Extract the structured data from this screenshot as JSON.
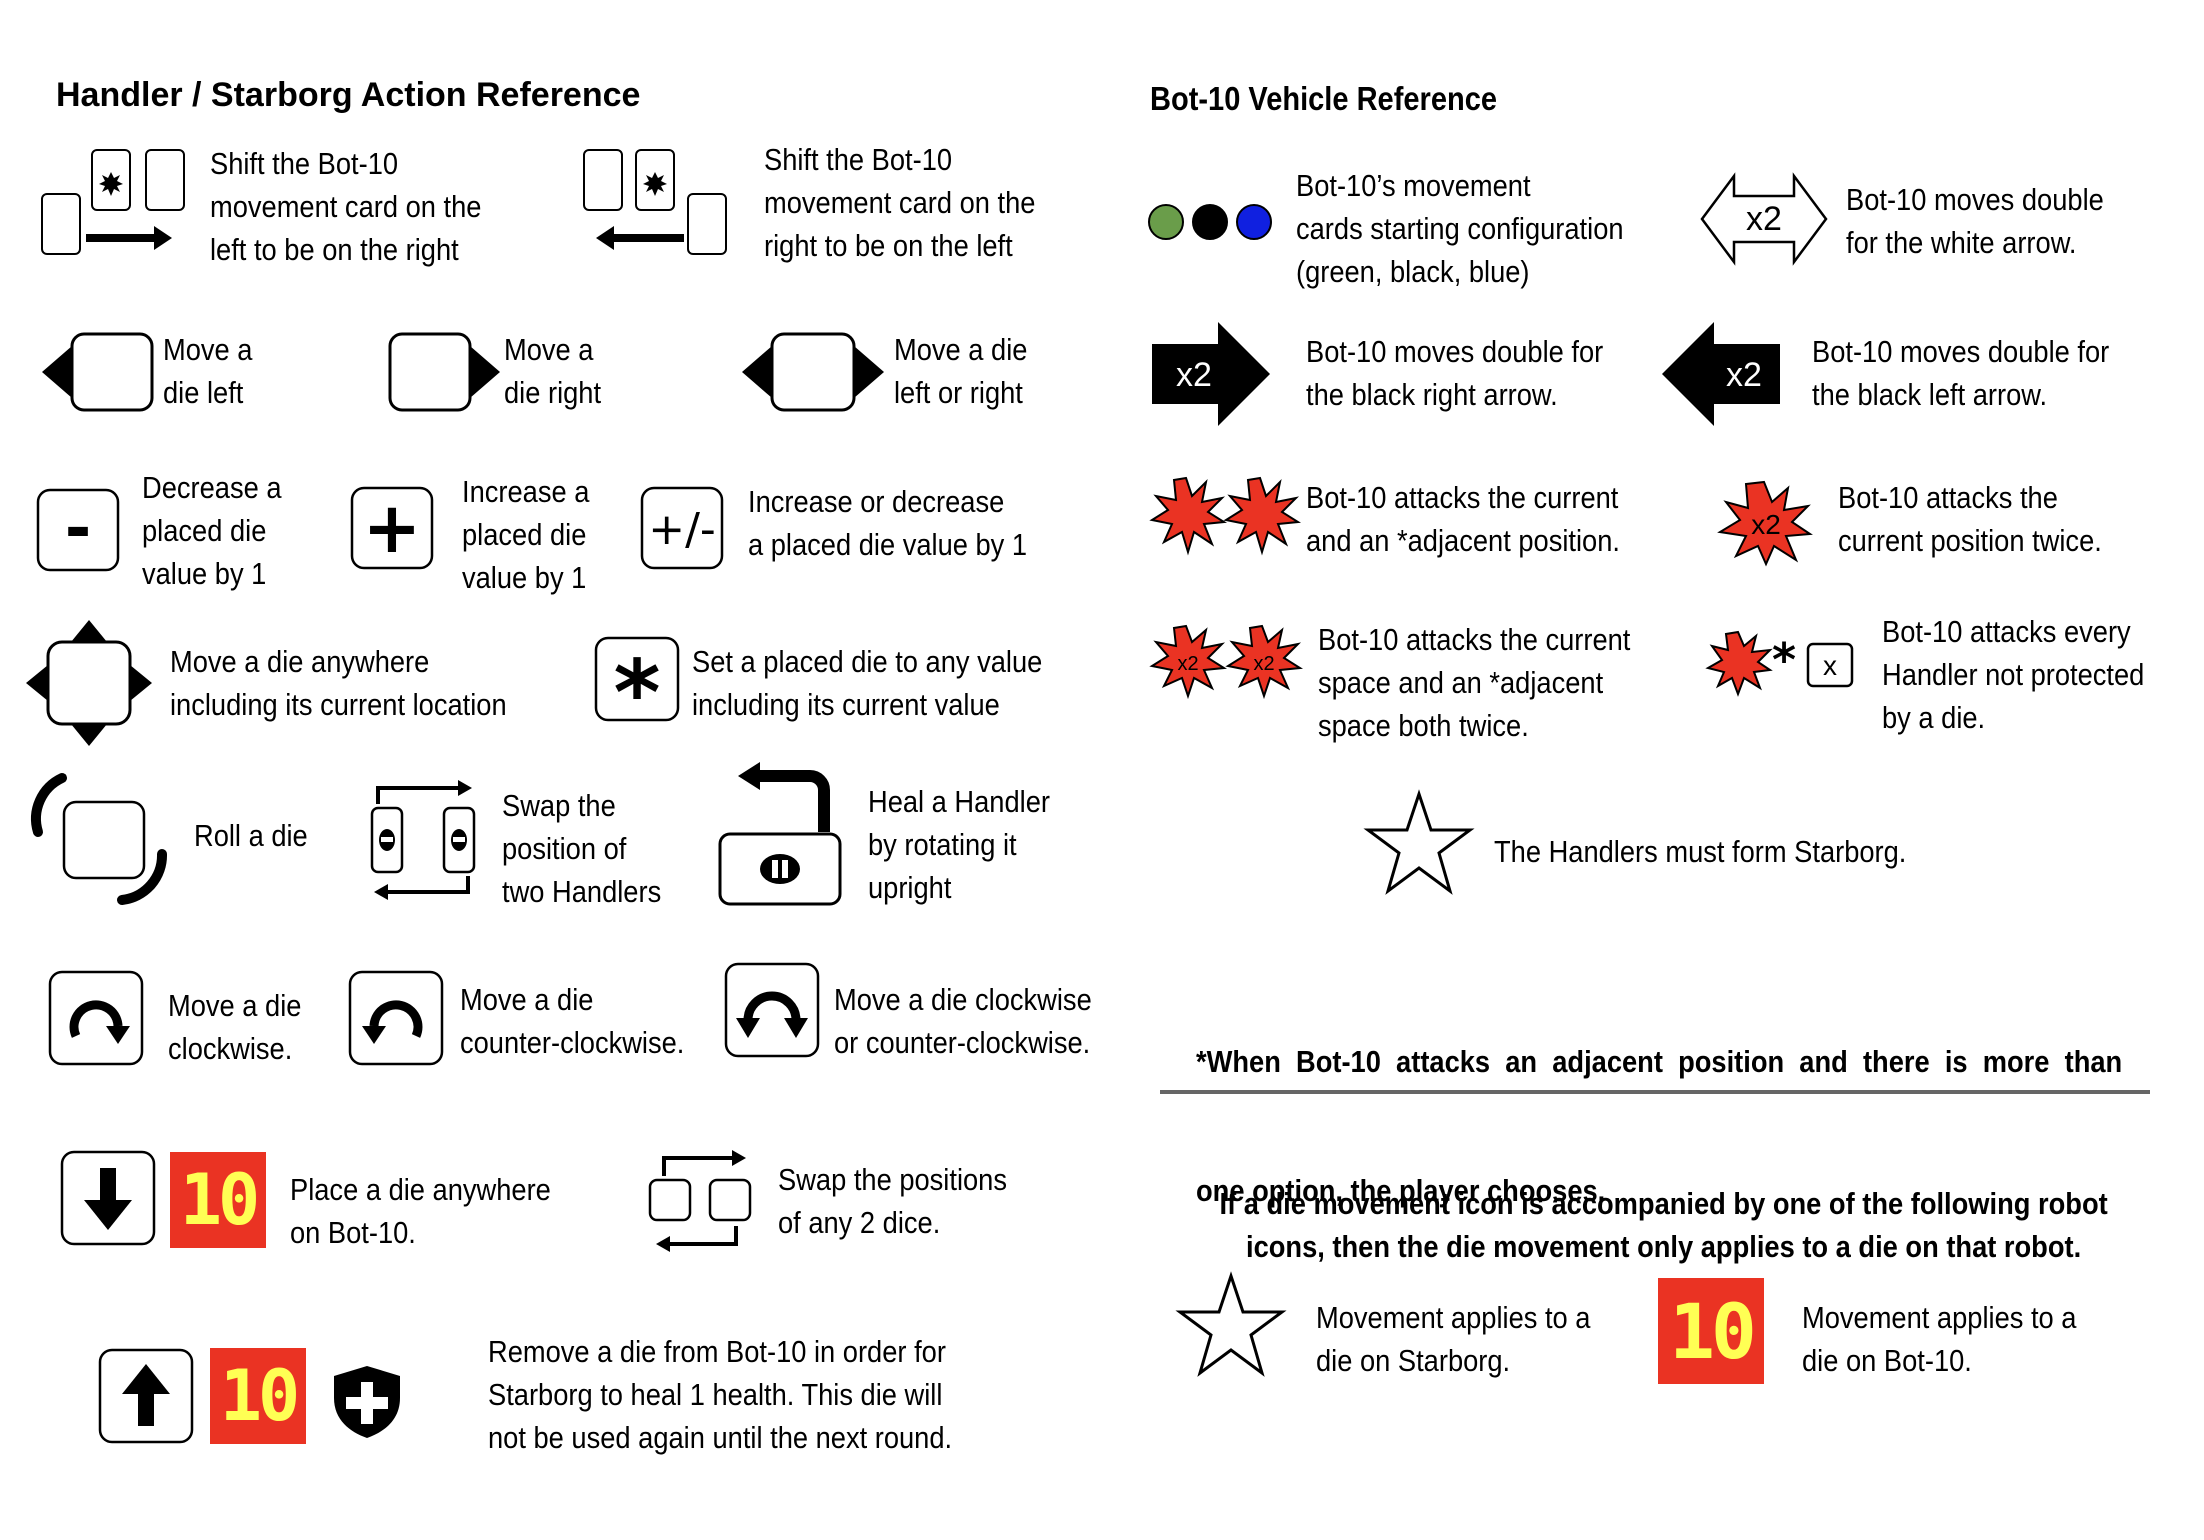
{
  "left_section": {
    "title": "Handler / Starborg Action Reference",
    "shift_left_to_right": [
      "Shift the Bot-10",
      "movement card on the",
      "left to be on the right"
    ],
    "shift_right_to_left": [
      "Shift the Bot-10",
      "movement card on the",
      "right to be on the left"
    ],
    "move_die_left": [
      "Move a",
      "die left"
    ],
    "move_die_right": [
      "Move a",
      "die right"
    ],
    "move_die_left_or_right": [
      "Move a die",
      "left or right"
    ],
    "decrease_die": {
      "symbol": "-",
      "lines": [
        "Decrease a",
        "placed die",
        "value by 1"
      ]
    },
    "increase_die": {
      "symbol": "+",
      "lines": [
        "Increase a",
        "placed die",
        "value by 1"
      ]
    },
    "increase_or_decrease": {
      "symbol": "+/-",
      "lines": [
        "Increase or decrease",
        "a placed  die value by 1"
      ]
    },
    "move_anywhere": [
      "Move a die anywhere",
      "including its current location"
    ],
    "set_any_value": {
      "symbol": "*",
      "lines": [
        "Set a placed die to any value",
        "including its current value"
      ]
    },
    "roll_die": "Roll a die",
    "swap_handlers": [
      "Swap the",
      "position of",
      "two Handlers"
    ],
    "heal_handler": [
      "Heal a Handler",
      "by rotating it",
      "upright"
    ],
    "move_clockwise": [
      "Move a die",
      "clockwise."
    ],
    "move_counter_clockwise": [
      "Move a die",
      "counter-clockwise."
    ],
    "move_either": [
      "Move a die clockwise",
      "or counter-clockwise."
    ],
    "place_on_bot10": {
      "badge": "10",
      "lines": [
        "Place a die anywhere",
        "on Bot-10."
      ]
    },
    "swap_dice": [
      "Swap the positions",
      "of any 2 dice."
    ],
    "remove_from_bot10": {
      "badge": "10",
      "lines": [
        "Remove a die from Bot-10 in order for",
        "Starborg to heal 1 health.  This die will",
        "not be used again until the next round."
      ]
    }
  },
  "right_section": {
    "title": "Bot-10 Vehicle Reference",
    "starting_config": {
      "dot_colors": [
        "#6a9d4a",
        "#000000",
        "#1020e0"
      ],
      "lines": [
        "Bot-10’s movement",
        "cards starting configuration",
        "(green, black, blue)"
      ]
    },
    "white_arrow": {
      "label": "x2",
      "lines": [
        "Bot-10 moves double",
        "for the white arrow."
      ]
    },
    "black_right_arrow": {
      "label": "x2",
      "lines": [
        "Bot-10 moves double for",
        "the black right arrow."
      ]
    },
    "black_left_arrow": {
      "label": "x2",
      "lines": [
        "Bot-10 moves double for",
        "the black left arrow."
      ]
    },
    "attack_current_adjacent": [
      "Bot-10 attacks the current",
      "and an *adjacent position."
    ],
    "attack_twice": {
      "label": "x2",
      "lines": [
        "Bot-10 attacks the",
        "current position twice."
      ]
    },
    "attack_both_twice": {
      "label": "x2",
      "lines": [
        "Bot-10 attacks the current",
        "space and an *adjacent",
        "space both twice."
      ]
    },
    "attack_every": {
      "star": "*",
      "box": "x",
      "lines": [
        "Bot-10 attacks every",
        "Handler not protected",
        "by a die."
      ]
    },
    "starborg": "The Handlers must form Starborg.",
    "adjacent_note": [
      "*When  Bot-10  attacks  an  adjacent  position  and  there  is  more  than",
      "one option, the player chooses."
    ],
    "robot_note": [
      "If a die movement icon is accompanied by one of the following robot",
      "icons, then the die movement only applies to a die on that robot."
    ],
    "applies_starborg": [
      "Movement applies to a",
      "die on Starborg."
    ],
    "applies_bot10": {
      "badge": "10",
      "lines": [
        "Movement applies to a",
        "die on Bot-10."
      ]
    }
  },
  "colors": {
    "attack_red": "#ea3323",
    "badge_red": "#ea3323",
    "badge_yellow": "#ffff54",
    "rule_gray": "#666666"
  }
}
